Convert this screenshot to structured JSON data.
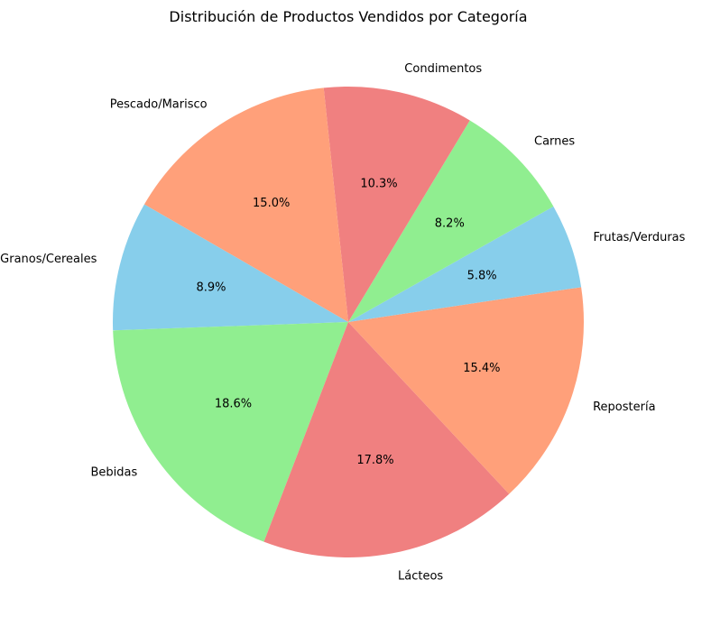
{
  "chart_data": {
    "type": "pie",
    "title": "Distribución de Productos Vendidos por Categoría",
    "start_angle_deg": 150,
    "direction": "counterclockwise",
    "slices": [
      {
        "label": "Granos/Cereales",
        "percent": 8.9,
        "percent_label": "8.9%",
        "color": "#87CEEB"
      },
      {
        "label": "Bebidas",
        "percent": 18.6,
        "percent_label": "18.6%",
        "color": "#90EE90"
      },
      {
        "label": "Lácteos",
        "percent": 17.8,
        "percent_label": "17.8%",
        "color": "#F08080"
      },
      {
        "label": "Repostería",
        "percent": 15.4,
        "percent_label": "15.4%",
        "color": "#FFA07A"
      },
      {
        "label": "Frutas/Verduras",
        "percent": 5.8,
        "percent_label": "5.8%",
        "color": "#87CEEB"
      },
      {
        "label": "Carnes",
        "percent": 8.2,
        "percent_label": "8.2%",
        "color": "#90EE90"
      },
      {
        "label": "Condimentos",
        "percent": 10.3,
        "percent_label": "10.3%",
        "color": "#F08080"
      },
      {
        "label": "Pescado/Marisco",
        "percent": 15.0,
        "percent_label": "15.0%",
        "color": "#FFA07A"
      }
    ]
  }
}
